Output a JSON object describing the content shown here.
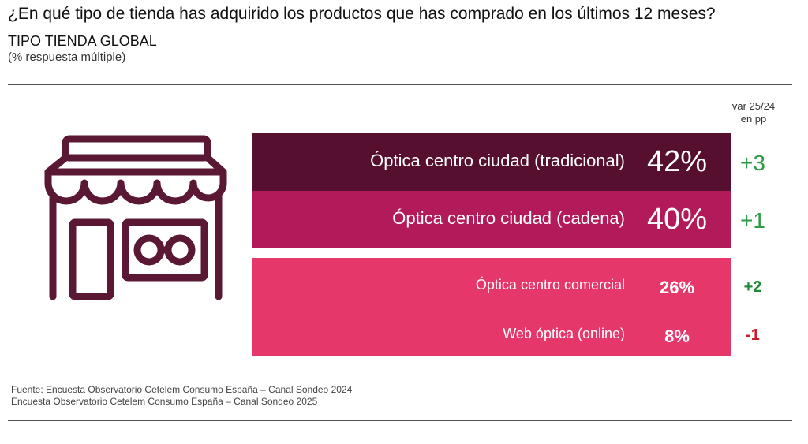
{
  "header": {
    "title": "¿En qué tipo de tienda has adquirido los productos que has comprado en los últimos 12 meses?",
    "subtitle": "TIPO TIENDA GLOBAL",
    "note": "(% respuesta múltiple)"
  },
  "chart_data": {
    "type": "bar",
    "title": "¿En qué tipo de tienda has adquirido los productos que has comprado en los últimos 12 meses?",
    "subtitle": "TIPO TIENDA GLOBAL",
    "variation_header": [
      "var 25/24",
      "en pp"
    ],
    "categories": [
      "Óptica centro ciudad (tradicional)",
      "Óptica centro ciudad (cadena)",
      "Óptica centro comercial",
      "Web óptica (online)"
    ],
    "values": [
      42,
      40,
      26,
      8
    ],
    "value_labels": [
      "42%",
      "40%",
      "26%",
      "8%"
    ],
    "variation": [
      3,
      1,
      2,
      -1
    ],
    "variation_labels": [
      "+3",
      "+1",
      "+2",
      "-1"
    ],
    "bar_colors": [
      "#560f2f",
      "#b31a5a",
      "#e6376b",
      "#e6376b"
    ],
    "variation_colors": [
      "#2e9a45",
      "#2e9a45",
      "#1f8a36",
      "#cc1a2e"
    ],
    "icon": "storefront-glasses-icon",
    "icon_color": "#5a1835"
  },
  "footer": {
    "source_1": "Fuente: Encuesta Observatorio Cetelem Consumo España – Canal Sondeo 2024",
    "source_2": "Encuesta Observatorio Cetelem Consumo España – Canal Sondeo 2025"
  }
}
